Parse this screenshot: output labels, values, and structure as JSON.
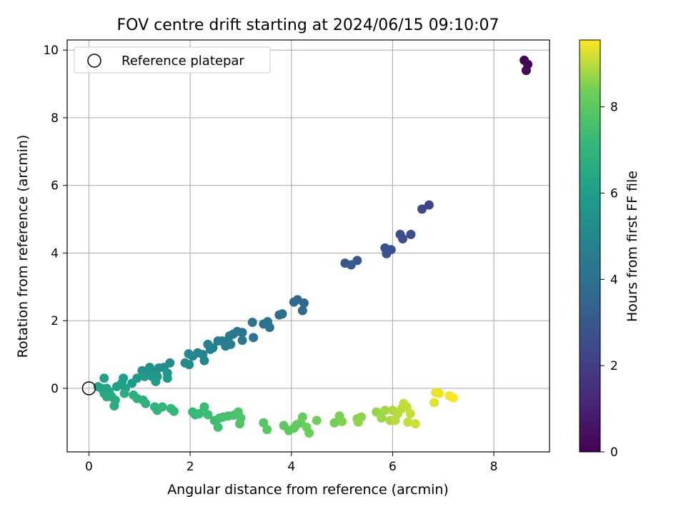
{
  "chart_data": {
    "type": "scatter",
    "title": "FOV centre drift starting at 2024/06/15 09:10:07",
    "xlabel": "Angular distance from reference (arcmin)",
    "ylabel": "Rotation from reference (arcmin)",
    "xlim": [
      -0.43,
      9.1
    ],
    "ylim": [
      -1.88,
      10.3
    ],
    "xticks": [
      "0",
      "2",
      "4",
      "6",
      "8"
    ],
    "yticks": [
      "0",
      "2",
      "4",
      "6",
      "8",
      "10"
    ],
    "grid": true,
    "legend": {
      "location": "upper-left",
      "entries": [
        "Reference platepar"
      ]
    },
    "reference_point": {
      "x": 0,
      "y": 0
    },
    "colorbar": {
      "label": "Hours from first FF file",
      "range": [
        0,
        9.55
      ],
      "ticks": [
        "0",
        "2",
        "4",
        "6",
        "8"
      ],
      "colormap": "viridis"
    },
    "points": [
      {
        "x": 8.6,
        "y": 9.7,
        "t": 0.1
      },
      {
        "x": 8.67,
        "y": 9.58,
        "t": 0.15
      },
      {
        "x": 8.64,
        "y": 9.4,
        "t": 0.2
      },
      {
        "x": 6.72,
        "y": 5.42,
        "t": 2.2
      },
      {
        "x": 6.58,
        "y": 5.3,
        "t": 2.3
      },
      {
        "x": 6.36,
        "y": 4.55,
        "t": 2.5
      },
      {
        "x": 6.15,
        "y": 4.55,
        "t": 2.55
      },
      {
        "x": 6.2,
        "y": 4.42,
        "t": 2.6
      },
      {
        "x": 5.97,
        "y": 4.1,
        "t": 2.7
      },
      {
        "x": 5.85,
        "y": 4.15,
        "t": 2.75
      },
      {
        "x": 5.88,
        "y": 3.98,
        "t": 2.8
      },
      {
        "x": 5.3,
        "y": 3.78,
        "t": 3.0
      },
      {
        "x": 5.06,
        "y": 3.7,
        "t": 3.05
      },
      {
        "x": 5.18,
        "y": 3.65,
        "t": 3.1
      },
      {
        "x": 4.25,
        "y": 2.52,
        "t": 3.5
      },
      {
        "x": 4.12,
        "y": 2.62,
        "t": 3.55
      },
      {
        "x": 4.05,
        "y": 2.55,
        "t": 3.6
      },
      {
        "x": 4.22,
        "y": 2.3,
        "t": 3.65
      },
      {
        "x": 3.82,
        "y": 2.2,
        "t": 3.8
      },
      {
        "x": 3.76,
        "y": 2.17,
        "t": 3.85
      },
      {
        "x": 3.53,
        "y": 1.97,
        "t": 3.95
      },
      {
        "x": 3.45,
        "y": 1.9,
        "t": 4.0
      },
      {
        "x": 3.57,
        "y": 1.8,
        "t": 4.05
      },
      {
        "x": 3.23,
        "y": 1.95,
        "t": 4.1
      },
      {
        "x": 3.25,
        "y": 1.5,
        "t": 4.15
      },
      {
        "x": 3.03,
        "y": 1.65,
        "t": 4.2
      },
      {
        "x": 3.03,
        "y": 1.42,
        "t": 4.25
      },
      {
        "x": 2.93,
        "y": 1.68,
        "t": 4.3
      },
      {
        "x": 2.85,
        "y": 1.6,
        "t": 4.35
      },
      {
        "x": 2.78,
        "y": 1.55,
        "t": 4.4
      },
      {
        "x": 2.72,
        "y": 1.4,
        "t": 4.45
      },
      {
        "x": 2.63,
        "y": 1.4,
        "t": 4.5
      },
      {
        "x": 2.8,
        "y": 1.3,
        "t": 4.55
      },
      {
        "x": 2.7,
        "y": 1.25,
        "t": 4.6
      },
      {
        "x": 2.55,
        "y": 1.4,
        "t": 4.65
      },
      {
        "x": 2.35,
        "y": 1.3,
        "t": 4.7
      },
      {
        "x": 2.4,
        "y": 1.15,
        "t": 4.75
      },
      {
        "x": 2.45,
        "y": 1.2,
        "t": 4.8
      },
      {
        "x": 2.25,
        "y": 1.0,
        "t": 4.85
      },
      {
        "x": 2.15,
        "y": 1.05,
        "t": 4.9
      },
      {
        "x": 2.28,
        "y": 0.82,
        "t": 4.95
      },
      {
        "x": 2.05,
        "y": 0.95,
        "t": 5.0
      },
      {
        "x": 1.97,
        "y": 1.02,
        "t": 5.05
      },
      {
        "x": 1.9,
        "y": 0.75,
        "t": 5.1
      },
      {
        "x": 1.98,
        "y": 0.7,
        "t": 5.15
      },
      {
        "x": 1.6,
        "y": 0.75,
        "t": 5.2
      },
      {
        "x": 1.48,
        "y": 0.62,
        "t": 5.25
      },
      {
        "x": 1.38,
        "y": 0.6,
        "t": 5.3
      },
      {
        "x": 1.3,
        "y": 0.45,
        "t": 5.35
      },
      {
        "x": 1.2,
        "y": 0.62,
        "t": 5.4
      },
      {
        "x": 1.12,
        "y": 0.5,
        "t": 5.45
      },
      {
        "x": 1.05,
        "y": 0.52,
        "t": 5.5
      },
      {
        "x": 1.25,
        "y": 0.35,
        "t": 5.55
      },
      {
        "x": 1.55,
        "y": 0.45,
        "t": 5.6
      },
      {
        "x": 1.55,
        "y": 0.3,
        "t": 5.65
      },
      {
        "x": 1.35,
        "y": 0.35,
        "t": 5.7
      },
      {
        "x": 1.1,
        "y": 0.35,
        "t": 5.75
      },
      {
        "x": 0.95,
        "y": 0.3,
        "t": 5.8
      },
      {
        "x": 1.32,
        "y": 0.2,
        "t": 5.85
      },
      {
        "x": 0.85,
        "y": 0.15,
        "t": 5.9
      },
      {
        "x": 0.68,
        "y": 0.3,
        "t": 5.95
      },
      {
        "x": 0.65,
        "y": 0.15,
        "t": 6.0
      },
      {
        "x": 0.72,
        "y": 0.0,
        "t": 6.05
      },
      {
        "x": 0.55,
        "y": 0.05,
        "t": 6.1
      },
      {
        "x": 0.3,
        "y": 0.3,
        "t": 6.15
      },
      {
        "x": 0.18,
        "y": 0.05,
        "t": 6.2
      },
      {
        "x": 0.25,
        "y": 0.0,
        "t": 6.25
      },
      {
        "x": 0.35,
        "y": 0.0,
        "t": 6.3
      },
      {
        "x": 0.3,
        "y": -0.15,
        "t": 6.35
      },
      {
        "x": 0.4,
        "y": -0.1,
        "t": 6.4
      },
      {
        "x": 0.45,
        "y": -0.25,
        "t": 6.45
      },
      {
        "x": 0.35,
        "y": -0.25,
        "t": 6.5
      },
      {
        "x": 0.52,
        "y": -0.35,
        "t": 6.55
      },
      {
        "x": 0.5,
        "y": -0.52,
        "t": 6.6
      },
      {
        "x": 0.7,
        "y": -0.15,
        "t": 6.65
      },
      {
        "x": 0.88,
        "y": -0.2,
        "t": 6.7
      },
      {
        "x": 0.95,
        "y": -0.3,
        "t": 6.75
      },
      {
        "x": 1.07,
        "y": -0.35,
        "t": 6.8
      },
      {
        "x": 1.12,
        "y": -0.45,
        "t": 6.85
      },
      {
        "x": 1.3,
        "y": -0.55,
        "t": 6.9
      },
      {
        "x": 1.35,
        "y": -0.65,
        "t": 6.95
      },
      {
        "x": 1.45,
        "y": -0.55,
        "t": 7.0
      },
      {
        "x": 1.62,
        "y": -0.6,
        "t": 7.05
      },
      {
        "x": 1.68,
        "y": -0.68,
        "t": 7.1
      },
      {
        "x": 2.05,
        "y": -0.7,
        "t": 7.15
      },
      {
        "x": 2.1,
        "y": -0.78,
        "t": 7.2
      },
      {
        "x": 2.18,
        "y": -0.75,
        "t": 7.25
      },
      {
        "x": 2.28,
        "y": -0.55,
        "t": 7.3
      },
      {
        "x": 2.35,
        "y": -0.78,
        "t": 7.35
      },
      {
        "x": 2.48,
        "y": -0.95,
        "t": 7.4
      },
      {
        "x": 2.55,
        "y": -1.15,
        "t": 7.45
      },
      {
        "x": 2.58,
        "y": -0.88,
        "t": 7.5
      },
      {
        "x": 2.65,
        "y": -0.85,
        "t": 7.55
      },
      {
        "x": 2.75,
        "y": -0.82,
        "t": 7.6
      },
      {
        "x": 2.85,
        "y": -0.8,
        "t": 7.65
      },
      {
        "x": 2.95,
        "y": -0.7,
        "t": 7.7
      },
      {
        "x": 3.0,
        "y": -0.88,
        "t": 7.75
      },
      {
        "x": 2.98,
        "y": -1.05,
        "t": 7.8
      },
      {
        "x": 3.45,
        "y": -1.02,
        "t": 7.85
      },
      {
        "x": 3.52,
        "y": -1.22,
        "t": 7.9
      },
      {
        "x": 3.85,
        "y": -1.1,
        "t": 7.95
      },
      {
        "x": 3.95,
        "y": -1.25,
        "t": 8.0
      },
      {
        "x": 4.05,
        "y": -1.18,
        "t": 8.05
      },
      {
        "x": 4.1,
        "y": -1.08,
        "t": 8.1
      },
      {
        "x": 4.18,
        "y": -1.02,
        "t": 8.15
      },
      {
        "x": 4.22,
        "y": -0.85,
        "t": 8.2
      },
      {
        "x": 4.3,
        "y": -1.15,
        "t": 8.25
      },
      {
        "x": 4.35,
        "y": -1.32,
        "t": 8.3
      },
      {
        "x": 4.5,
        "y": -0.95,
        "t": 8.35
      },
      {
        "x": 4.85,
        "y": -1.02,
        "t": 8.4
      },
      {
        "x": 4.95,
        "y": -0.82,
        "t": 8.45
      },
      {
        "x": 5.0,
        "y": -0.98,
        "t": 8.5
      },
      {
        "x": 5.3,
        "y": -0.9,
        "t": 8.55
      },
      {
        "x": 5.38,
        "y": -0.85,
        "t": 8.6
      },
      {
        "x": 5.32,
        "y": -1.0,
        "t": 8.65
      },
      {
        "x": 5.68,
        "y": -0.7,
        "t": 8.7
      },
      {
        "x": 5.78,
        "y": -0.88,
        "t": 8.75
      },
      {
        "x": 5.85,
        "y": -0.65,
        "t": 8.8
      },
      {
        "x": 5.95,
        "y": -0.95,
        "t": 8.85
      },
      {
        "x": 6.0,
        "y": -0.65,
        "t": 8.9
      },
      {
        "x": 6.1,
        "y": -0.75,
        "t": 8.95
      },
      {
        "x": 6.05,
        "y": -0.95,
        "t": 9.0
      },
      {
        "x": 6.18,
        "y": -0.6,
        "t": 9.0
      },
      {
        "x": 6.22,
        "y": -0.45,
        "t": 9.05
      },
      {
        "x": 6.28,
        "y": -0.55,
        "t": 9.05
      },
      {
        "x": 6.35,
        "y": -0.75,
        "t": 9.1
      },
      {
        "x": 6.3,
        "y": -1.0,
        "t": 9.1
      },
      {
        "x": 6.45,
        "y": -1.05,
        "t": 9.15
      },
      {
        "x": 6.82,
        "y": -0.42,
        "t": 9.3
      },
      {
        "x": 6.85,
        "y": -0.12,
        "t": 9.35
      },
      {
        "x": 6.92,
        "y": -0.15,
        "t": 9.4
      },
      {
        "x": 7.12,
        "y": -0.22,
        "t": 9.45
      },
      {
        "x": 7.2,
        "y": -0.28,
        "t": 9.5
      }
    ]
  }
}
